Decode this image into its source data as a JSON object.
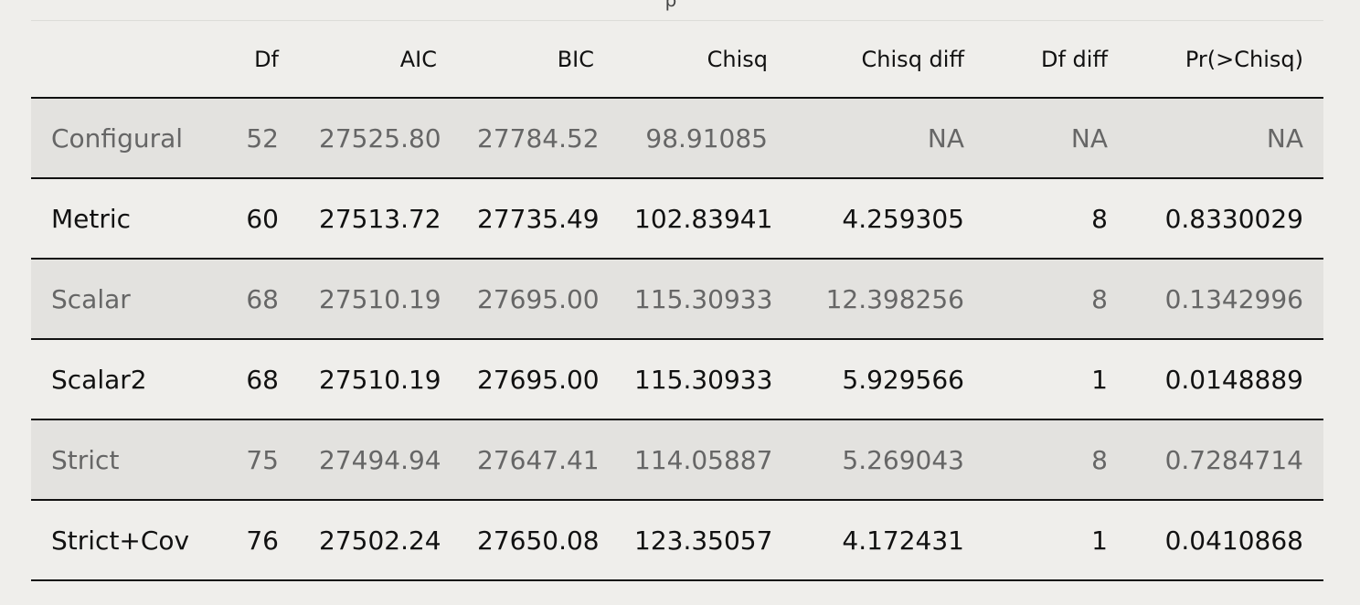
{
  "caption_fragment": "p",
  "table": {
    "headers": [
      "",
      "Df",
      "AIC",
      "BIC",
      "Chisq",
      "Chisq diff",
      "Df diff",
      "Pr(>Chisq)"
    ],
    "rows": [
      [
        "Configural",
        "52",
        "27525.80",
        "27784.52",
        "98.91085",
        "NA",
        "NA",
        "NA"
      ],
      [
        "Metric",
        "60",
        "27513.72",
        "27735.49",
        "102.83941",
        "4.259305",
        "8",
        "0.8330029"
      ],
      [
        "Scalar",
        "68",
        "27510.19",
        "27695.00",
        "115.30933",
        "12.398256",
        "8",
        "0.1342996"
      ],
      [
        "Scalar2",
        "68",
        "27510.19",
        "27695.00",
        "115.30933",
        "5.929566",
        "1",
        "0.0148889"
      ],
      [
        "Strict",
        "75",
        "27494.94",
        "27647.41",
        "114.05887",
        "5.269043",
        "8",
        "0.7284714"
      ],
      [
        "Strict+Cov",
        "76",
        "27502.24",
        "27650.08",
        "123.35057",
        "4.172431",
        "1",
        "0.0410868"
      ]
    ]
  }
}
